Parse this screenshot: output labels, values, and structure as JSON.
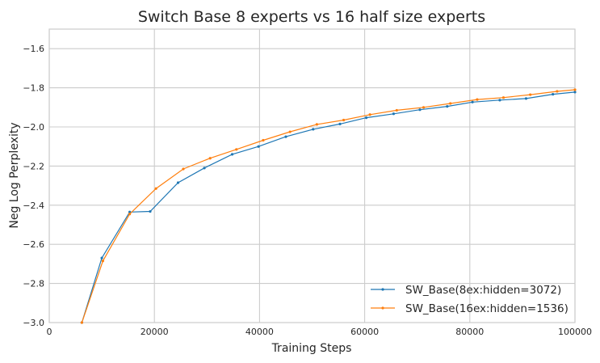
{
  "chart_data": {
    "type": "line",
    "title": "Switch Base 8 experts vs 16 half size experts",
    "xlabel": "Training Steps",
    "ylabel": "Neg Log Perplexity",
    "xlim": [
      0,
      100000
    ],
    "ylim": [
      -3.0,
      -1.5
    ],
    "xticks": [
      0,
      20000,
      40000,
      60000,
      80000,
      100000
    ],
    "yticks": [
      -3.0,
      -2.8,
      -2.6,
      -2.4,
      -2.2,
      -2.0,
      -1.8,
      -1.6
    ],
    "grid": true,
    "legend_position": "lower-right",
    "series": [
      {
        "name": "SW_Base(8ex:hidden=3072)",
        "color": "#1f77b4",
        "x": [
          6200,
          10000,
          15300,
          19200,
          24500,
          29500,
          34800,
          39800,
          45000,
          50200,
          55300,
          60300,
          65500,
          70500,
          75700,
          80500,
          85700,
          90700,
          95800,
          100000
        ],
        "y": [
          -3.0,
          -2.67,
          -2.435,
          -2.432,
          -2.285,
          -2.21,
          -2.14,
          -2.1,
          -2.05,
          -2.012,
          -1.985,
          -1.953,
          -1.933,
          -1.912,
          -1.895,
          -1.873,
          -1.863,
          -1.855,
          -1.833,
          -1.822
        ]
      },
      {
        "name": "SW_Base(16ex:hidden=1536)",
        "color": "#ff7f0e",
        "x": [
          6200,
          10200,
          15300,
          20300,
          25500,
          30600,
          35600,
          40700,
          45800,
          50900,
          56000,
          61000,
          66100,
          71200,
          76300,
          81400,
          86400,
          91500,
          96600,
          100000
        ],
        "y": [
          -3.0,
          -2.685,
          -2.445,
          -2.315,
          -2.215,
          -2.16,
          -2.115,
          -2.068,
          -2.025,
          -1.987,
          -1.965,
          -1.937,
          -1.915,
          -1.9,
          -1.88,
          -1.86,
          -1.85,
          -1.835,
          -1.818,
          -1.81
        ]
      }
    ]
  }
}
